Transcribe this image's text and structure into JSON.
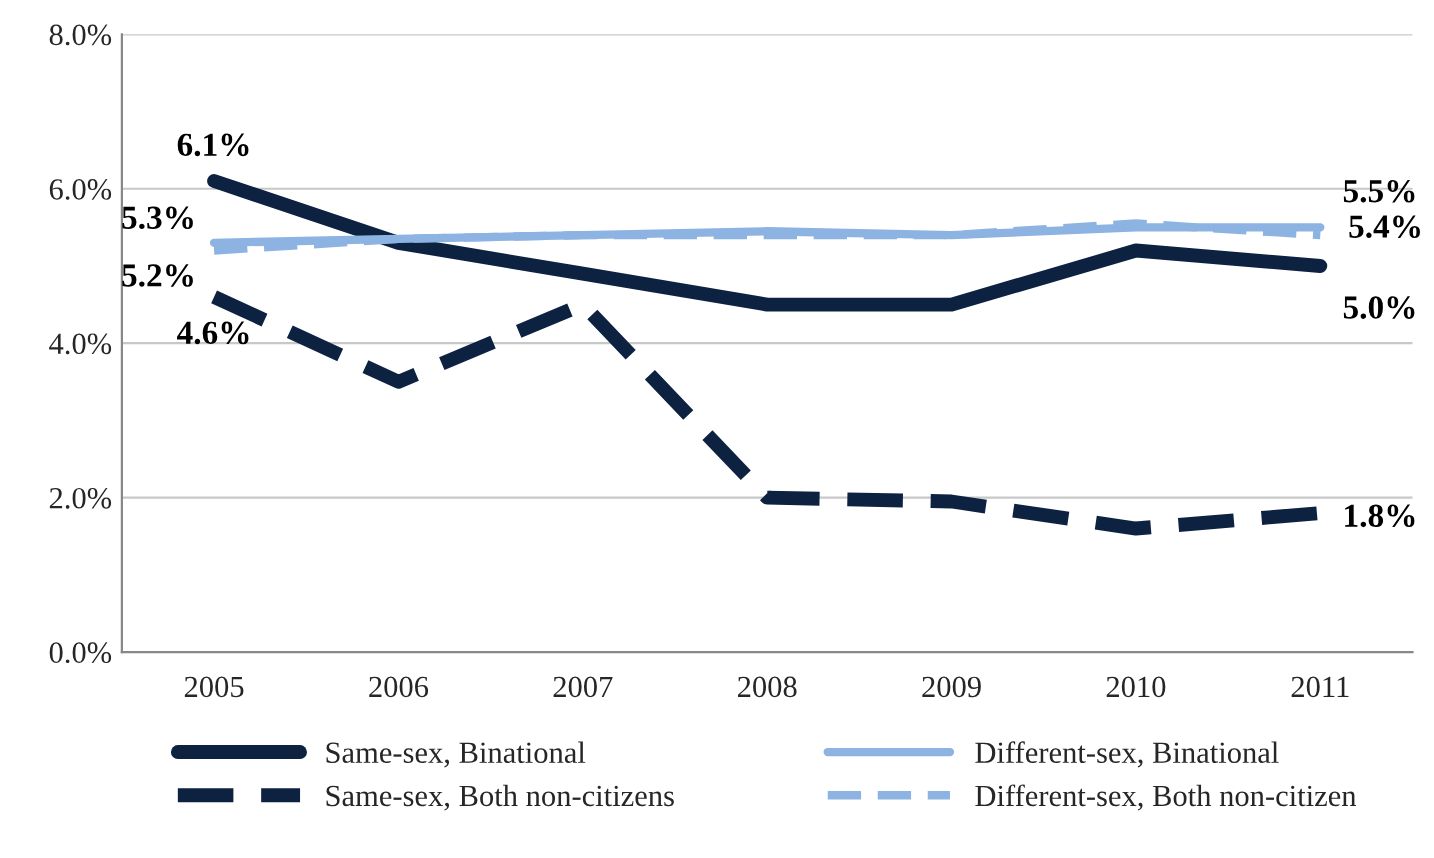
{
  "chart_data": {
    "type": "line",
    "categories": [
      "2005",
      "2006",
      "2007",
      "2008",
      "2009",
      "2010",
      "2011"
    ],
    "ylim": [
      0,
      8
    ],
    "yticks": [
      {
        "value": 0,
        "label": "0.0%"
      },
      {
        "value": 2,
        "label": "2.0%"
      },
      {
        "value": 4,
        "label": "4.0%"
      },
      {
        "value": 6,
        "label": "6.0%"
      },
      {
        "value": 8,
        "label": "8.0%"
      }
    ],
    "grid": "y",
    "legend": "bottom",
    "marker": "none",
    "series": [
      {
        "name": "Same-sex, Binational",
        "color": "#0d2240",
        "line_style": "solid",
        "values": [
          6.1,
          5.3,
          4.9,
          4.5,
          4.5,
          5.2,
          5.0
        ],
        "value_labels": [
          "6.1%",
          null,
          null,
          null,
          null,
          null,
          "5.0%"
        ]
      },
      {
        "name": "Same-sex, Both non-citizens",
        "color": "#0d2240",
        "line_style": "dashed",
        "values": [
          4.6,
          3.5,
          4.5,
          2.0,
          1.95,
          1.6,
          1.8
        ],
        "value_labels": [
          "4.6%",
          null,
          null,
          null,
          null,
          null,
          "1.8%"
        ]
      },
      {
        "name": "Different-sex, Binational",
        "color": "#8db3e2",
        "line_style": "solid",
        "values": [
          5.3,
          5.35,
          5.4,
          5.45,
          5.4,
          5.5,
          5.5
        ],
        "value_labels": [
          "5.3%",
          null,
          null,
          null,
          null,
          null,
          "5.5%"
        ]
      },
      {
        "name": "Different-sex, Both non-citizen",
        "color": "#8db3e2",
        "line_style": "dashed",
        "values": [
          5.2,
          5.35,
          5.4,
          5.4,
          5.4,
          5.55,
          5.4
        ],
        "value_labels": [
          "5.2%",
          null,
          null,
          null,
          null,
          null,
          "5.4%"
        ]
      }
    ]
  }
}
